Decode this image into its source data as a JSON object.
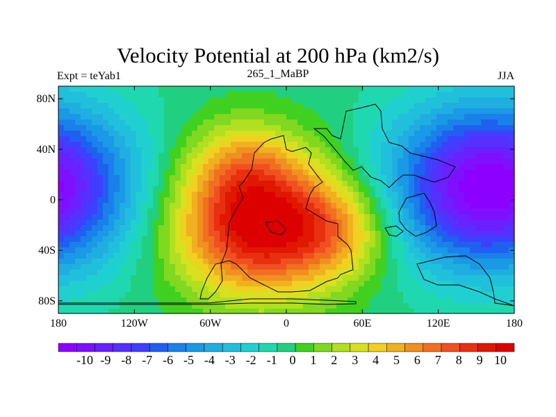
{
  "title": "Velocity Potential at 200 hPa (km2/s)",
  "left_string": "Expt = teYab1",
  "center_string": "265_1_MaBP",
  "right_string": "JJA",
  "map": {
    "lon_range": [
      -180,
      180
    ],
    "lat_range": [
      -90,
      90
    ],
    "lon_ticks": [
      {
        "value": -180,
        "label": "180"
      },
      {
        "value": -120,
        "label": "120W"
      },
      {
        "value": -60,
        "label": "60W"
      },
      {
        "value": 0,
        "label": "0"
      },
      {
        "value": 60,
        "label": "60E"
      },
      {
        "value": 120,
        "label": "120E"
      },
      {
        "value": 180,
        "label": "180"
      }
    ],
    "lat_ticks": [
      {
        "value": 80,
        "label": "80N"
      },
      {
        "value": 40,
        "label": "40N"
      },
      {
        "value": 0,
        "label": "0"
      },
      {
        "value": -40,
        "label": "40S"
      },
      {
        "value": -80,
        "label": "80S"
      }
    ],
    "field_centers": [
      {
        "lon": -20,
        "lat": -20,
        "amp": 11,
        "slon": 48,
        "slat": 38
      },
      {
        "lon": -35,
        "lat": 30,
        "amp": 3,
        "slon": 30,
        "slat": 25
      },
      {
        "lon": 45,
        "lat": -25,
        "amp": 3,
        "slon": 30,
        "slat": 25
      },
      {
        "lon": 160,
        "lat": 10,
        "amp": -11,
        "slon": 55,
        "slat": 45
      }
    ]
  },
  "colorbar": {
    "labels": [
      "-10",
      "-9",
      "-8",
      "-7",
      "-6",
      "-5",
      "-4",
      "-3",
      "-2",
      "-1",
      "0",
      "1",
      "2",
      "3",
      "4",
      "5",
      "6",
      "7",
      "8",
      "9",
      "10"
    ],
    "colors": [
      "#8b00ff",
      "#7f10ff",
      "#6a20ff",
      "#5530ff",
      "#3f3fff",
      "#2060f0",
      "#1a80ea",
      "#1a99e6",
      "#20aee0",
      "#20c0dc",
      "#20d0d0",
      "#20d8b0",
      "#20d080",
      "#40d020",
      "#80d820",
      "#b0e020",
      "#d8e020",
      "#f0d020",
      "#f0b020",
      "#f09020",
      "#f07020",
      "#f05020",
      "#e83010",
      "#e01800",
      "#dd0000"
    ]
  }
}
